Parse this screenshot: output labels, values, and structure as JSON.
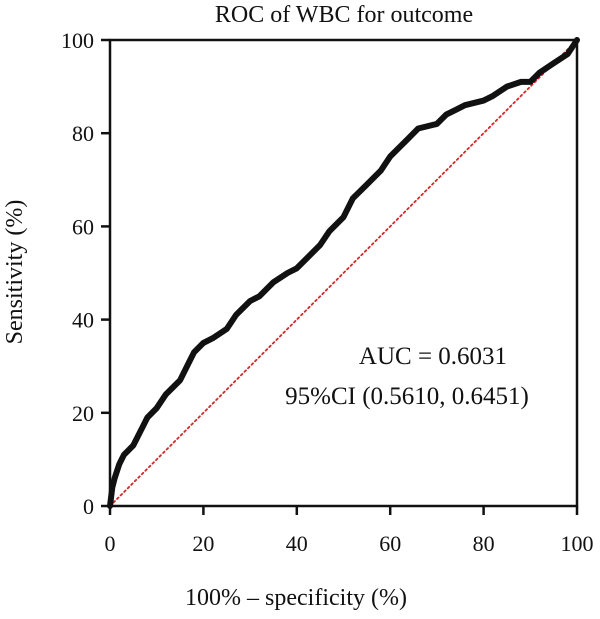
{
  "chart_data": {
    "type": "line",
    "title": "ROC of WBC for outcome",
    "xlabel": "100% – specificity (%)",
    "ylabel": "Sensitivity (%)",
    "xlim": [
      0,
      100
    ],
    "ylim": [
      0,
      100
    ],
    "xticks": [
      0,
      20,
      40,
      60,
      80,
      100
    ],
    "yticks": [
      0,
      20,
      40,
      60,
      80,
      100
    ],
    "grid": false,
    "series": [
      {
        "style": "thick-black-line",
        "color": "#111111",
        "x": [
          0,
          0.5,
          1,
          2,
          3,
          5,
          7,
          8,
          10,
          12,
          15,
          17,
          18,
          20,
          22,
          25,
          27,
          30,
          32,
          35,
          38,
          40,
          42,
          45,
          47,
          50,
          52,
          55,
          58,
          60,
          62,
          64,
          66,
          70,
          72,
          74,
          76,
          80,
          82,
          85,
          88,
          90,
          92,
          95,
          98,
          100
        ],
        "y": [
          0,
          4,
          6,
          9,
          11,
          13,
          17,
          19,
          21,
          24,
          27,
          31,
          33,
          35,
          36,
          38,
          41,
          44,
          45,
          48,
          50,
          51,
          53,
          56,
          59,
          62,
          66,
          69,
          72,
          75,
          77,
          79,
          81,
          82,
          84,
          85,
          86,
          87,
          88,
          90,
          91,
          91,
          93,
          95,
          97,
          100
        ]
      },
      {
        "style": "reference-diagonal",
        "color": "#d62728",
        "x": [
          0,
          100
        ],
        "y": [
          0,
          100
        ]
      }
    ],
    "annotations": [
      "AUC = 0.6031",
      "95%CI (0.5610, 0.6451)"
    ]
  }
}
